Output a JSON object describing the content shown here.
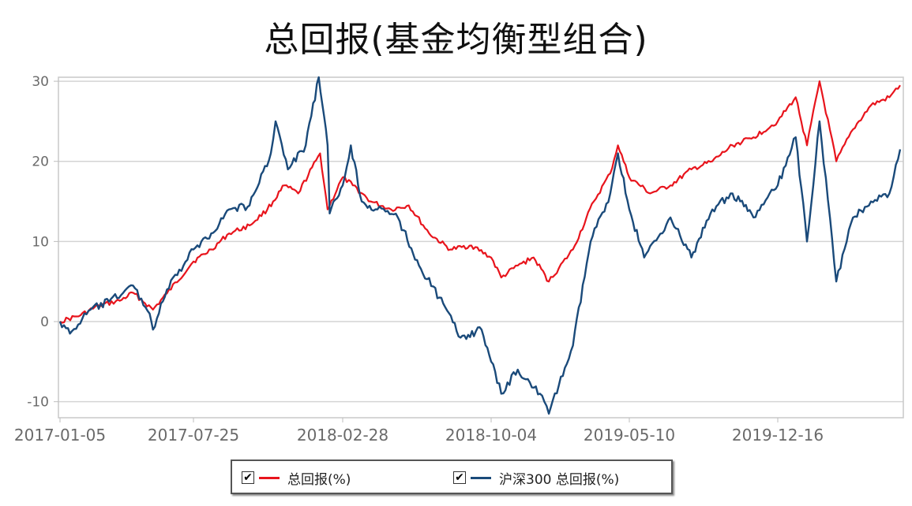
{
  "chart_data": {
    "type": "line",
    "title": "总回报(基金均衡型组合)",
    "xlabel": "",
    "ylabel": "",
    "x_tick_labels": [
      "2017-01-05",
      "2017-07-25",
      "2018-02-28",
      "2018-10-04",
      "2019-05-10",
      "2019-12-16"
    ],
    "y_ticks": [
      -10,
      0,
      10,
      20,
      30
    ],
    "ylim": [
      -12,
      30.5
    ],
    "grid": true,
    "legend_position": "bottom",
    "series": [
      {
        "name": "总回报(%)",
        "color": "#e8141c",
        "points": [
          [
            "2017-01-05",
            0.0
          ],
          [
            "2017-02-05",
            0.8
          ],
          [
            "2017-03-05",
            2.0
          ],
          [
            "2017-04-05",
            2.6
          ],
          [
            "2017-04-25",
            3.6
          ],
          [
            "2017-05-25",
            1.5
          ],
          [
            "2017-06-15",
            3.5
          ],
          [
            "2017-07-25",
            7.5
          ],
          [
            "2017-08-20",
            9.0
          ],
          [
            "2017-09-15",
            11.0
          ],
          [
            "2017-10-15",
            12.0
          ],
          [
            "2017-11-10",
            14.0
          ],
          [
            "2017-12-05",
            17.0
          ],
          [
            "2017-12-25",
            16.0
          ],
          [
            "2018-01-26",
            21.0
          ],
          [
            "2018-02-06",
            14.0
          ],
          [
            "2018-02-28",
            18.0
          ],
          [
            "2018-03-15",
            17.0
          ],
          [
            "2018-04-10",
            15.0
          ],
          [
            "2018-05-10",
            14.0
          ],
          [
            "2018-06-05",
            14.5
          ],
          [
            "2018-07-05",
            11.0
          ],
          [
            "2018-08-05",
            9.0
          ],
          [
            "2018-09-05",
            9.5
          ],
          [
            "2018-10-04",
            8.0
          ],
          [
            "2018-10-20",
            5.5
          ],
          [
            "2018-11-15",
            7.0
          ],
          [
            "2018-12-10",
            8.0
          ],
          [
            "2019-01-03",
            5.0
          ],
          [
            "2019-02-10",
            9.0
          ],
          [
            "2019-03-15",
            15.0
          ],
          [
            "2019-04-10",
            18.5
          ],
          [
            "2019-04-22",
            22.0
          ],
          [
            "2019-05-10",
            18.0
          ],
          [
            "2019-06-10",
            16.0
          ],
          [
            "2019-07-10",
            17.0
          ],
          [
            "2019-08-10",
            19.0
          ],
          [
            "2019-09-10",
            20.0
          ],
          [
            "2019-10-10",
            22.0
          ],
          [
            "2019-11-10",
            23.0
          ],
          [
            "2019-12-16",
            25.0
          ],
          [
            "2020-01-15",
            28.0
          ],
          [
            "2020-02-03",
            22.0
          ],
          [
            "2020-02-24",
            30.0
          ],
          [
            "2020-03-23",
            20.0
          ],
          [
            "2020-04-20",
            24.0
          ],
          [
            "2020-05-20",
            27.0
          ],
          [
            "2020-06-20",
            28.0
          ],
          [
            "2020-07-08",
            29.5
          ]
        ]
      },
      {
        "name": "沪深300 总回报(%)",
        "color": "#1a4a7a",
        "points": [
          [
            "2017-01-05",
            0.0
          ],
          [
            "2017-01-20",
            -1.5
          ],
          [
            "2017-02-20",
            1.5
          ],
          [
            "2017-03-20",
            2.5
          ],
          [
            "2017-04-25",
            4.5
          ],
          [
            "2017-05-20",
            1.0
          ],
          [
            "2017-05-25",
            -1.0
          ],
          [
            "2017-06-15",
            4.0
          ],
          [
            "2017-07-10",
            7.0
          ],
          [
            "2017-07-25",
            9.0
          ],
          [
            "2017-08-20",
            11.0
          ],
          [
            "2017-09-15",
            14.0
          ],
          [
            "2017-10-15",
            14.5
          ],
          [
            "2017-11-15",
            21.0
          ],
          [
            "2017-11-22",
            25.0
          ],
          [
            "2017-12-10",
            19.0
          ],
          [
            "2018-01-05",
            22.0
          ],
          [
            "2018-01-24",
            30.5
          ],
          [
            "2018-02-06",
            22.0
          ],
          [
            "2018-02-09",
            13.5
          ],
          [
            "2018-02-28",
            17.0
          ],
          [
            "2018-03-12",
            22.0
          ],
          [
            "2018-03-28",
            15.0
          ],
          [
            "2018-04-20",
            14.0
          ],
          [
            "2018-05-20",
            13.0
          ],
          [
            "2018-06-20",
            7.0
          ],
          [
            "2018-07-20",
            3.0
          ],
          [
            "2018-08-20",
            -2.0
          ],
          [
            "2018-09-20",
            -1.0
          ],
          [
            "2018-10-04",
            -5.0
          ],
          [
            "2018-10-20",
            -9.0
          ],
          [
            "2018-11-15",
            -6.0
          ],
          [
            "2018-12-20",
            -9.0
          ],
          [
            "2019-01-03",
            -11.5
          ],
          [
            "2019-02-10",
            -3.0
          ],
          [
            "2019-03-10",
            10.0
          ],
          [
            "2019-04-10",
            16.0
          ],
          [
            "2019-04-22",
            21.0
          ],
          [
            "2019-05-10",
            14.0
          ],
          [
            "2019-06-01",
            8.0
          ],
          [
            "2019-07-10",
            13.0
          ],
          [
            "2019-08-10",
            8.0
          ],
          [
            "2019-09-10",
            14.0
          ],
          [
            "2019-10-10",
            16.0
          ],
          [
            "2019-11-10",
            13.0
          ],
          [
            "2019-12-16",
            17.0
          ],
          [
            "2020-01-15",
            23.0
          ],
          [
            "2020-02-03",
            10.0
          ],
          [
            "2020-02-24",
            25.0
          ],
          [
            "2020-03-23",
            5.0
          ],
          [
            "2020-04-20",
            13.0
          ],
          [
            "2020-05-20",
            15.0
          ],
          [
            "2020-06-20",
            16.0
          ],
          [
            "2020-07-08",
            21.5
          ]
        ]
      }
    ]
  },
  "legend": {
    "items": [
      {
        "label": "总回报(%)",
        "color": "#e8141c",
        "check": "✔"
      },
      {
        "label": "沪深300 总回报(%)",
        "color": "#1a4a7a",
        "check": "✔"
      }
    ]
  }
}
